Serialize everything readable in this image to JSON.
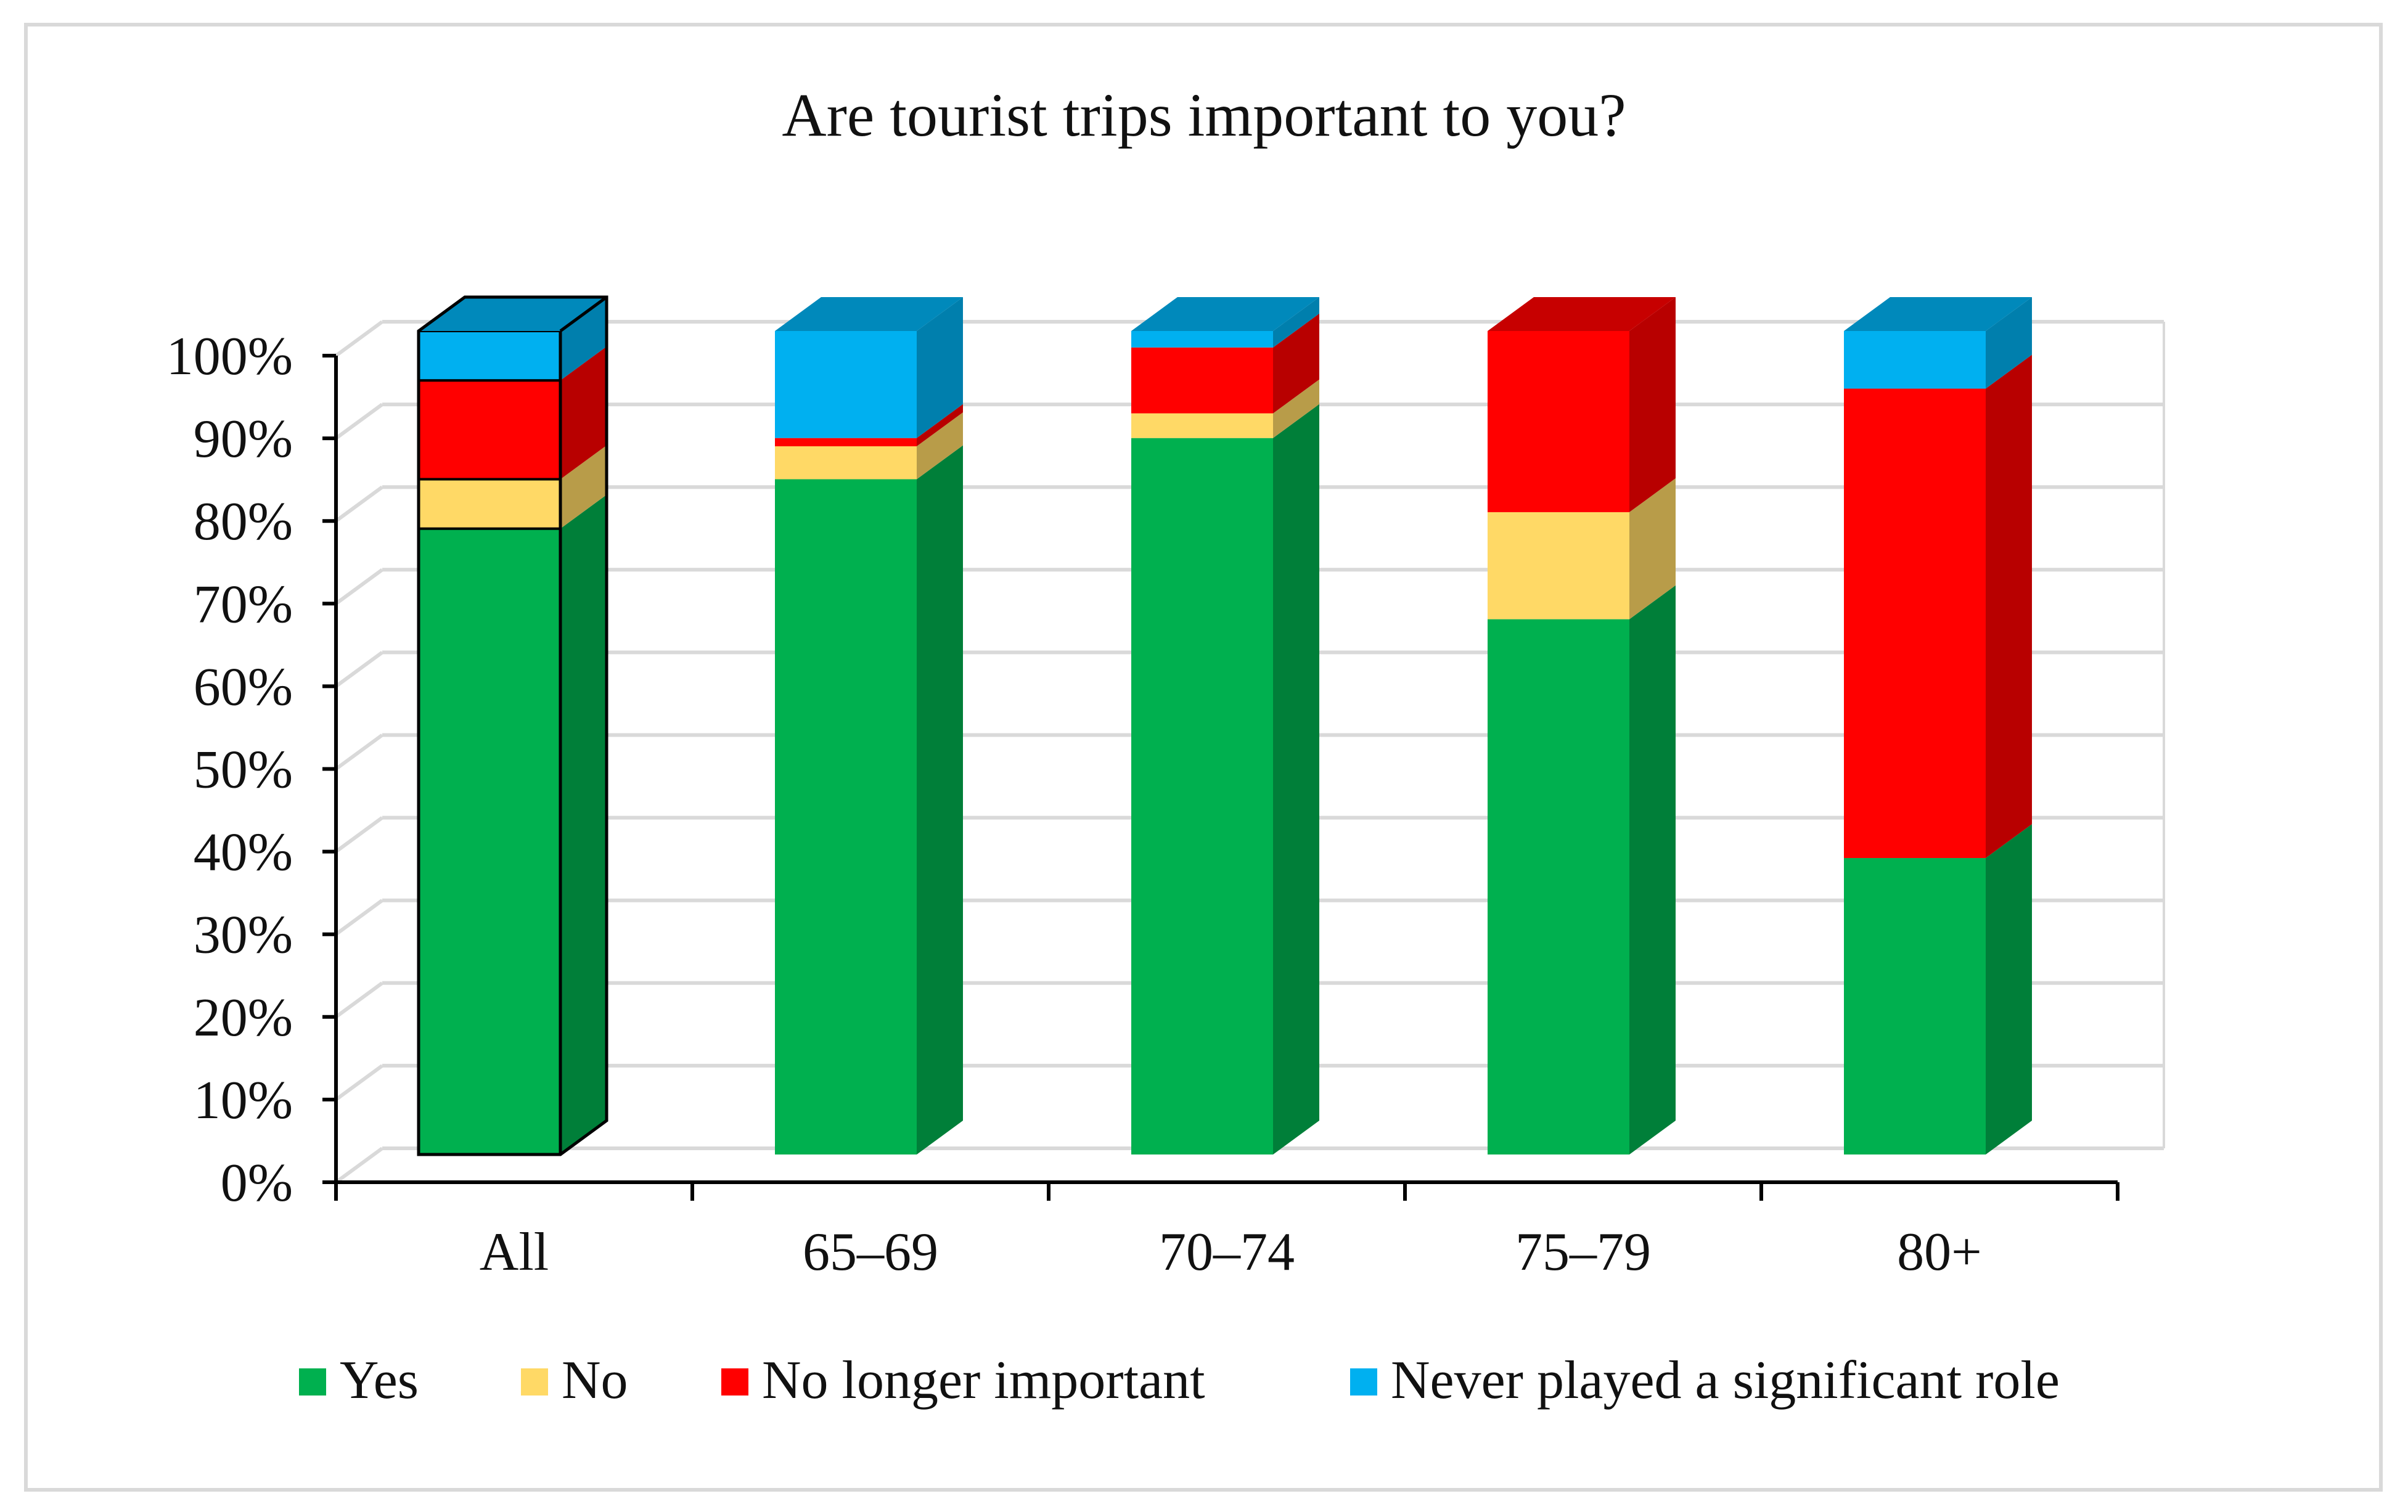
{
  "chart_data": {
    "type": "bar",
    "stacked": true,
    "three_d": true,
    "title": "Are tourist trips important to you?",
    "xlabel": "",
    "ylabel": "",
    "ylim": [
      0,
      100
    ],
    "y_ticks": [
      "0%",
      "10%",
      "20%",
      "30%",
      "40%",
      "50%",
      "60%",
      "70%",
      "80%",
      "90%",
      "100%"
    ],
    "grid": true,
    "legend_position": "bottom",
    "categories": [
      "All",
      "65–69",
      "70–74",
      "75–79",
      "80+"
    ],
    "series": [
      {
        "name": "Yes",
        "color": "#00b04f",
        "values": [
          76,
          82,
          87,
          65,
          36
        ]
      },
      {
        "name": "No",
        "color": "#ffd966",
        "values": [
          6,
          4,
          3,
          13,
          0
        ]
      },
      {
        "name": "No longer important",
        "color": "#ff0000",
        "values": [
          12,
          1,
          8,
          22,
          57
        ]
      },
      {
        "name": "Never played a significant role",
        "color": "#00b0f0",
        "values": [
          6,
          13,
          2,
          0,
          7
        ]
      }
    ]
  }
}
